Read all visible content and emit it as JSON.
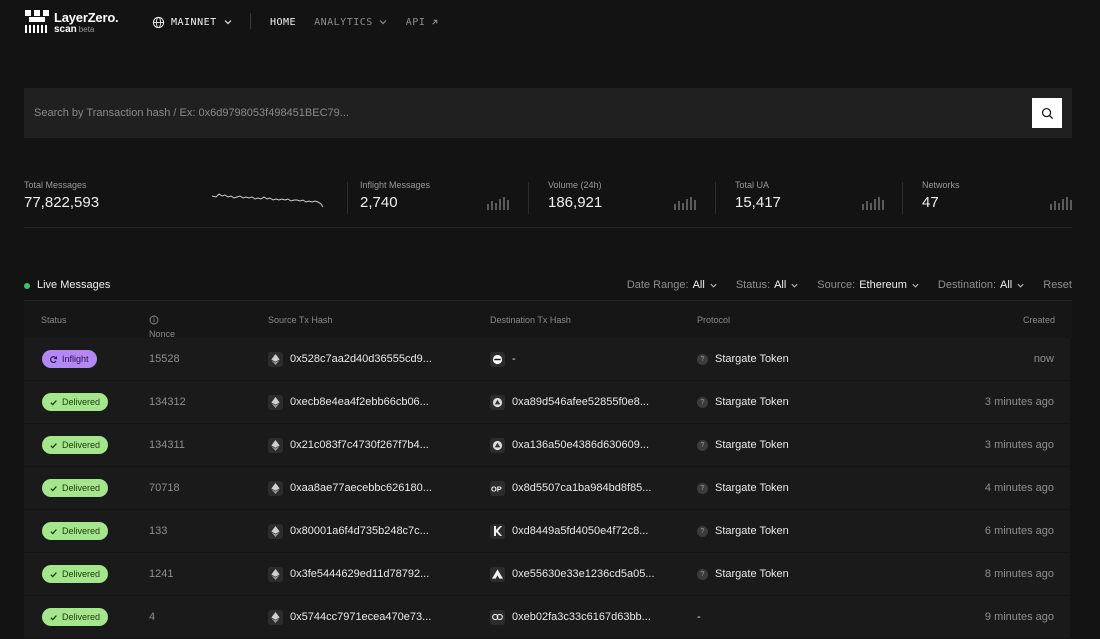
{
  "header": {
    "logo_name": "LayerZero.",
    "logo_sub": "scan",
    "logo_beta": "beta",
    "network": "MAINNET",
    "nav": [
      {
        "label": "HOME"
      },
      {
        "label": "ANALYTICS"
      },
      {
        "label": "API"
      }
    ]
  },
  "search": {
    "placeholder": "Search by Transaction hash / Ex: 0x6d9798053f498451BEC79..."
  },
  "stats": [
    {
      "label": "Total Messages",
      "value": "77,822,593"
    },
    {
      "label": "Inflight Messages",
      "value": "2,740"
    },
    {
      "label": "Volume (24h)",
      "value": "186,921"
    },
    {
      "label": "Total UA",
      "value": "15,417"
    },
    {
      "label": "Networks",
      "value": "47"
    }
  ],
  "live": {
    "title": "Live Messages",
    "filters": [
      {
        "label": "Date Range:",
        "value": "All"
      },
      {
        "label": "Status:",
        "value": "All"
      },
      {
        "label": "Source:",
        "value": "Ethereum"
      },
      {
        "label": "Destination:",
        "value": "All"
      }
    ],
    "reset": "Reset"
  },
  "table": {
    "columns": [
      "Status",
      "Nonce",
      "Source Tx Hash",
      "Destination Tx Hash",
      "Protocol",
      "Created"
    ],
    "rows": [
      {
        "status": "Inflight",
        "nonce": "15528",
        "source": "0x528c7aa2d40d36555cd9...",
        "dest": "-",
        "dest_icon": "dest-chain-icon",
        "protocol": "Stargate Token",
        "created": "now"
      },
      {
        "status": "Delivered",
        "nonce": "134312",
        "source": "0xecb8e4ea4f2ebb66cb06...",
        "dest": "0xa89d546afee52855f0e8...",
        "dest_icon": "dest-chain-icon",
        "protocol": "Stargate Token",
        "created": "3 minutes ago"
      },
      {
        "status": "Delivered",
        "nonce": "134311",
        "source": "0x21c083f7c4730f267f7b4...",
        "dest": "0xa136a50e4386d630609...",
        "dest_icon": "dest-chain-icon",
        "protocol": "Stargate Token",
        "created": "3 minutes ago"
      },
      {
        "status": "Delivered",
        "nonce": "70718",
        "source": "0xaa8ae77aecebbc626180...",
        "dest": "0x8d5507ca1ba984bd8f85...",
        "dest_icon": "optimism-icon",
        "protocol": "Stargate Token",
        "created": "4 minutes ago"
      },
      {
        "status": "Delivered",
        "nonce": "133",
        "source": "0x80001a6f4d735b248c7c...",
        "dest": "0xd8449a5fd4050e4f72c8...",
        "dest_icon": "kava-icon",
        "protocol": "Stargate Token",
        "created": "6 minutes ago"
      },
      {
        "status": "Delivered",
        "nonce": "1241",
        "source": "0x3fe5444629ed11d78792...",
        "dest": "0xe55630e33e1236cd5a05...",
        "dest_icon": "dest-chain-icon",
        "protocol": "Stargate Token",
        "created": "8 minutes ago"
      },
      {
        "status": "Delivered",
        "nonce": "4",
        "source": "0x5744cc7971ecea470e73...",
        "dest": "0xeb02fa3c33c6167d63bb...",
        "dest_icon": "dest-chain-icon",
        "protocol": "-",
        "created": "9 minutes ago"
      }
    ]
  },
  "colors": {
    "background": "#131313",
    "delivered": "#a4e68c",
    "inflight": "#b387f4",
    "live_dot": "#3ec26e"
  }
}
